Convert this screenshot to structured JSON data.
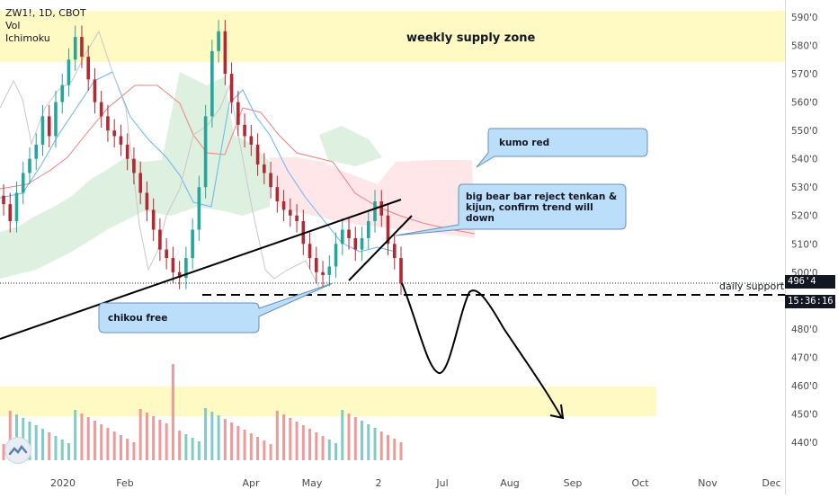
{
  "header": {
    "ticker": "ZW1!, 1D, CBOT",
    "indicator_vol": "Vol",
    "indicator_ichimoku": "Ichimoku"
  },
  "price_tags": {
    "last_price": "496'4",
    "countdown": "15:36:16"
  },
  "annotations": {
    "supply_zone": "weekly supply zone",
    "kumo": "kumo red",
    "bear_bar_line1": "big bear bar reject tenkan &",
    "bear_bar_line2": "kijun, confirm trend will",
    "bear_bar_line3": "down",
    "chikou": "chikou free",
    "daily_support": "daily support"
  },
  "colors": {
    "supply_zone": "#fff9c4",
    "callout_fill": "#bbdefb",
    "callout_stroke": "#6b8fb8",
    "candle_up": "#26a69a",
    "candle_down": "#b22833",
    "vol_up": "#80cbc4",
    "vol_down": "#ef9a9a",
    "kumo_green": "#c8e6c9",
    "kumo_red": "#ffcdd2",
    "kijun": "#f08080",
    "tenkan": "#64b5f6",
    "chikou": "#c8c8c8"
  },
  "chart_data": {
    "type": "candlestick",
    "symbol": "ZW1!",
    "interval": "1D",
    "exchange": "CBOT",
    "ylim": [
      428,
      597
    ],
    "y_ticks": [
      "590'0",
      "580'0",
      "570'0",
      "560'0",
      "550'0",
      "540'0",
      "530'0",
      "520'0",
      "510'0",
      "500'0",
      "480'0",
      "470'0",
      "460'0",
      "450'0",
      "440'0"
    ],
    "x_ticks": [
      "2020",
      "Feb",
      "Apr",
      "May",
      "2",
      "Jul",
      "Aug",
      "Sep",
      "Oct",
      "Nov",
      "Dec"
    ],
    "close_series": [
      {
        "month": "Jan 2020",
        "values": [
          524,
          518,
          528,
          535,
          540,
          545,
          555,
          548,
          560,
          566,
          575,
          583,
          576
        ]
      },
      {
        "month": "Feb 2020",
        "values": [
          568,
          560,
          555,
          550,
          548,
          545,
          540,
          535,
          528,
          522,
          515,
          508,
          505,
          500,
          498
        ]
      },
      {
        "month": "Mar 2020",
        "values": [
          505,
          515,
          530,
          555,
          578,
          585,
          570,
          560,
          552,
          548,
          545,
          538,
          535
        ]
      },
      {
        "month": "Apr 2020",
        "values": [
          530,
          525,
          522,
          520,
          518,
          510,
          505,
          500,
          499,
          502,
          510,
          515,
          512,
          508
        ]
      },
      {
        "month": "May 2020",
        "values": [
          512,
          518,
          525,
          520,
          510,
          505,
          496
        ]
      }
    ],
    "supply_zone": [
      574,
      592
    ],
    "daily_support": 496.4,
    "support_dashed": 493,
    "volume_zone": "yellow band",
    "projection": "down to ~470, bounce ~497, then down to ~450 (Sep)"
  }
}
